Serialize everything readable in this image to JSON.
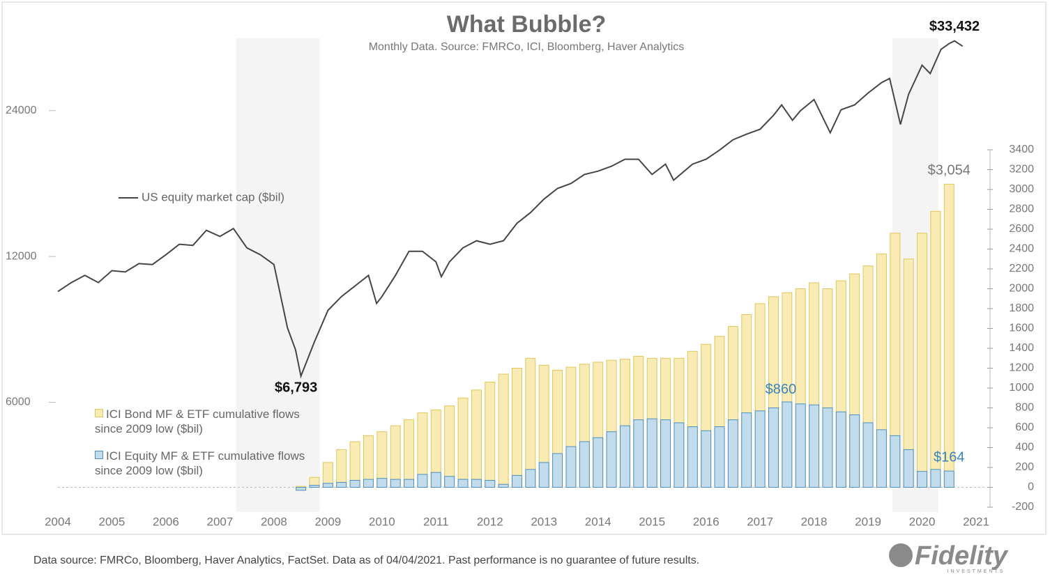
{
  "chart_data": {
    "type": "combo",
    "title": "What Bubble?",
    "subtitle": "Monthly Data. Source: FMRCo, ICI, Bloomberg, Haver Analytics",
    "xlim": [
      2004,
      2021
    ],
    "xticks": [
      2004,
      2005,
      2006,
      2007,
      2008,
      2009,
      2010,
      2011,
      2012,
      2013,
      2014,
      2015,
      2016,
      2017,
      2018,
      2019,
      2020,
      2021
    ],
    "ylim": [
      4000,
      38000
    ],
    "yticks": [
      6000,
      12000,
      24000
    ],
    "log_scale": true,
    "y2lim": [
      -200,
      3400
    ],
    "y2ticks": [
      -200,
      0,
      200,
      400,
      600,
      800,
      1000,
      1200,
      1400,
      1600,
      1800,
      2000,
      2200,
      2400,
      2600,
      2800,
      3000,
      3200,
      3400
    ],
    "zero_line": true,
    "shaded": [
      [
        2007.3,
        2008.85
      ],
      [
        2019.45,
        2020.3
      ]
    ],
    "series": [
      {
        "name": "US equity market cap ($bil)",
        "type": "line",
        "axis": "y",
        "color": "#454545",
        "x": [
          2004,
          2004.25,
          2004.5,
          2004.75,
          2005,
          2005.25,
          2005.5,
          2005.75,
          2006,
          2006.25,
          2006.5,
          2006.75,
          2007,
          2007.25,
          2007.5,
          2007.75,
          2008,
          2008.25,
          2008.4,
          2008.5,
          2008.75,
          2009,
          2009.25,
          2009.5,
          2009.75,
          2009.9,
          2010,
          2010.25,
          2010.5,
          2010.75,
          2011,
          2011.1,
          2011.25,
          2011.5,
          2011.75,
          2012,
          2012.25,
          2012.5,
          2012.75,
          2013,
          2013.25,
          2013.5,
          2013.75,
          2014,
          2014.25,
          2014.5,
          2014.75,
          2015,
          2015.25,
          2015.4,
          2015.75,
          2016,
          2016.25,
          2016.5,
          2016.75,
          2017,
          2017.25,
          2017.4,
          2017.6,
          2017.75,
          2018,
          2018.3,
          2018.5,
          2018.75,
          2019,
          2019.25,
          2019.4,
          2019.6,
          2019.75,
          2020,
          2020.15,
          2020.35,
          2020.5,
          2020.6,
          2020.75
        ],
        "values": [
          10160,
          10600,
          10970,
          10600,
          11220,
          11150,
          11600,
          11550,
          12100,
          12720,
          12650,
          13590,
          13200,
          13700,
          12500,
          12100,
          11550,
          8550,
          7700,
          6793,
          8000,
          9290,
          9920,
          10430,
          10970,
          9600,
          9920,
          10970,
          12300,
          12300,
          11700,
          10900,
          11700,
          12500,
          12930,
          12720,
          12930,
          14050,
          14780,
          15760,
          16580,
          16980,
          17720,
          18000,
          18430,
          19050,
          19050,
          17720,
          18610,
          17250,
          18610,
          19050,
          19900,
          20900,
          21460,
          21960,
          23470,
          24660,
          22930,
          24000,
          25300,
          21600,
          24100,
          24660,
          26100,
          27420,
          27970,
          22480,
          25940,
          29780,
          28620,
          32110,
          33000,
          33432,
          32600
        ]
      },
      {
        "name": "ICI Bond MF & ETF cumulative flows since 2009 low ($bil)",
        "type": "bar",
        "axis": "y2",
        "color": "#f8ecb4",
        "stroke": "#e3c55a",
        "x": [
          2008.5,
          2008.75,
          2009,
          2009.25,
          2009.5,
          2009.75,
          2010,
          2010.25,
          2010.5,
          2010.75,
          2011,
          2011.25,
          2011.5,
          2011.75,
          2012,
          2012.25,
          2012.5,
          2012.75,
          2013,
          2013.25,
          2013.5,
          2013.75,
          2014,
          2014.25,
          2014.5,
          2014.75,
          2015,
          2015.25,
          2015.5,
          2015.75,
          2016,
          2016.25,
          2016.5,
          2016.75,
          2017,
          2017.25,
          2017.5,
          2017.75,
          2018,
          2018.25,
          2018.5,
          2018.75,
          2019,
          2019.25,
          2019.5,
          2019.75,
          2020,
          2020.25,
          2020.5
        ],
        "values": [
          10,
          100,
          250,
          380,
          460,
          520,
          560,
          620,
          680,
          750,
          780,
          820,
          900,
          980,
          1060,
          1140,
          1200,
          1300,
          1230,
          1180,
          1210,
          1240,
          1260,
          1280,
          1290,
          1320,
          1300,
          1300,
          1300,
          1370,
          1440,
          1520,
          1620,
          1740,
          1850,
          1920,
          1960,
          2000,
          2060,
          2000,
          2080,
          2150,
          2230,
          2350,
          2560,
          2300,
          2560,
          2780,
          3054
        ]
      },
      {
        "name": "ICI Equity MF & ETF cumulative flows since 2009 low ($bil)",
        "type": "bar",
        "axis": "y2",
        "color": "#c2dcec",
        "stroke": "#4a8fbf",
        "x": [
          2008.5,
          2008.75,
          2009,
          2009.25,
          2009.5,
          2009.75,
          2010,
          2010.25,
          2010.5,
          2010.75,
          2011,
          2011.25,
          2011.5,
          2011.75,
          2012,
          2012.25,
          2012.5,
          2012.75,
          2013,
          2013.25,
          2013.5,
          2013.75,
          2014,
          2014.25,
          2014.5,
          2014.75,
          2015,
          2015.25,
          2015.5,
          2015.75,
          2016,
          2016.25,
          2016.5,
          2016.75,
          2017,
          2017.25,
          2017.5,
          2017.75,
          2018,
          2018.25,
          2018.5,
          2018.75,
          2019,
          2019.25,
          2019.5,
          2019.75,
          2020,
          2020.25,
          2020.5
        ],
        "values": [
          -30,
          20,
          40,
          50,
          70,
          80,
          90,
          80,
          80,
          130,
          150,
          110,
          80,
          80,
          70,
          30,
          120,
          180,
          250,
          340,
          410,
          460,
          500,
          560,
          620,
          680,
          690,
          680,
          650,
          610,
          570,
          610,
          680,
          750,
          770,
          800,
          860,
          840,
          830,
          800,
          760,
          730,
          650,
          580,
          520,
          380,
          160,
          180,
          164
        ]
      }
    ],
    "annotations": [
      {
        "label": "$33,432",
        "x": 2020.6,
        "value": 33432,
        "axis": "y",
        "color": "#111"
      },
      {
        "label": "$6,793",
        "x": 2008.5,
        "value": 6793,
        "axis": "y",
        "color": "#111"
      },
      {
        "label": "$3,054",
        "x": 2020.5,
        "value": 3054,
        "axis": "y2",
        "color": "#777"
      },
      {
        "label": "$860",
        "x": 2017.5,
        "value": 860,
        "axis": "y2",
        "color": "#3a86b8"
      },
      {
        "label": "$164",
        "x": 2020.5,
        "value": 164,
        "axis": "y2",
        "color": "#3a86b8"
      }
    ]
  },
  "footer": {
    "note": "Data source: FMRCo, Bloomberg, Haver Analytics, FactSet. Data as of 04/04/2021. Past performance is no guarantee of future results.",
    "logo": "Fidelity",
    "logo_sub": "INVESTMENTS"
  }
}
